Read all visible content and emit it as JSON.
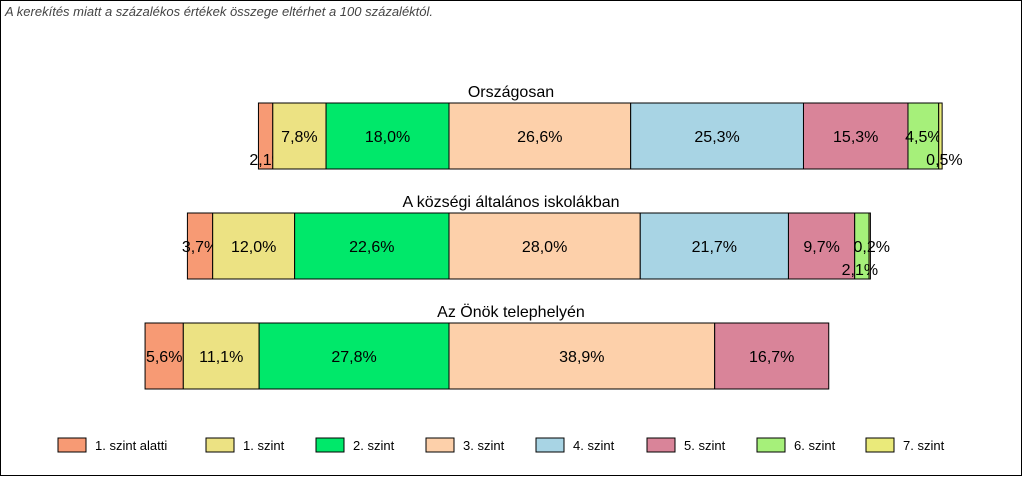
{
  "note": "A kerekítés miatt a  százalékos értékek összege eltérhet a 100 százaléktól.",
  "chart_data": {
    "type": "bar",
    "orientation": "horizontal-stacked-100",
    "categories": [
      "1. szint alatti",
      "1. szint",
      "2. szint",
      "3. szint",
      "4. szint",
      "5. szint",
      "6. szint",
      "7. szint"
    ],
    "colors": [
      "#f79a74",
      "#ece283",
      "#00e86a",
      "#fdd0aa",
      "#a8d4e4",
      "#d98499",
      "#a6f07a",
      "#eaea7a"
    ],
    "center_axis": "boundary between 2. szint and 3. szint",
    "legend_position": "bottom",
    "groups": [
      {
        "title": "Országosan",
        "values": [
          2.1,
          7.8,
          18.0,
          26.6,
          25.3,
          15.3,
          4.5,
          0.5
        ],
        "labels": [
          "2,1%",
          "7,8%",
          "18,0%",
          "26,6%",
          "25,3%",
          "15,3%",
          "4,5%",
          "0,5%"
        ]
      },
      {
        "title": "A községi általános iskolákban",
        "values": [
          3.7,
          12.0,
          22.6,
          28.0,
          21.7,
          9.7,
          2.1,
          0.2
        ],
        "labels": [
          "3,7%",
          "12,0%",
          "22,6%",
          "28,0%",
          "21,7%",
          "9,7%",
          "2,1%",
          "0,2%"
        ]
      },
      {
        "title": "Az Önök telephelyén",
        "values": [
          5.6,
          11.1,
          27.8,
          38.9,
          0,
          16.7,
          0,
          0
        ],
        "labels": [
          "5,6%",
          "11,1%",
          "27,8%",
          "38,9%",
          "",
          "16,7%",
          "",
          ""
        ]
      }
    ]
  }
}
